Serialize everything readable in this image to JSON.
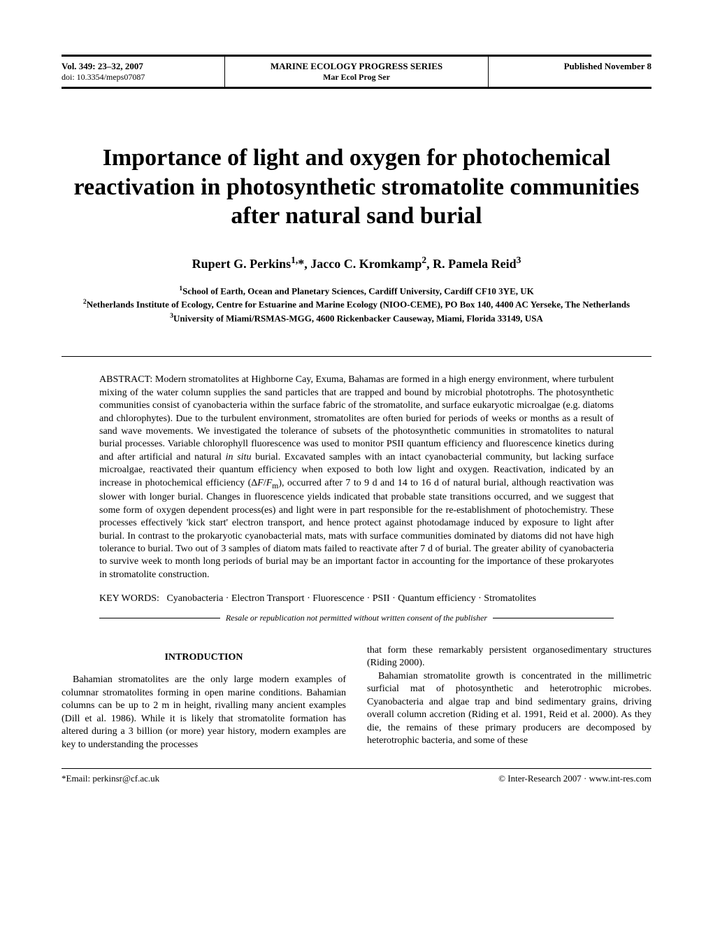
{
  "header": {
    "vol": "Vol. 349: 23–32, 2007",
    "doi": "doi: 10.3354/meps07087",
    "journal": "MARINE ECOLOGY PROGRESS SERIES",
    "journal_abbr": "Mar Ecol Prog Ser",
    "published": "Published November 8"
  },
  "title": "Importance of light and oxygen for photochemical reactivation in photosynthetic stromatolite communities after natural sand burial",
  "authors_html": "Rupert G. Perkins<sup>1,</sup>*, Jacco C. Kromkamp<sup>2</sup>, R. Pamela Reid<sup>3</sup>",
  "affiliations": {
    "a1": "<sup>1</sup>School of Earth, Ocean and Planetary Sciences, Cardiff University, Cardiff CF10 3YE, UK",
    "a2": "<sup>2</sup>Netherlands Institute of Ecology, Centre for Estuarine and Marine Ecology (NIOO-CEME), PO Box 140, 4400 AC Yerseke, The Netherlands",
    "a3": "<sup>3</sup>University of Miami/RSMAS-MGG, 4600 Rickenbacker Causeway, Miami, Florida 33149, USA"
  },
  "abstract_label": "ABSTRACT:",
  "abstract_text": "Modern stromatolites at Highborne Cay, Exuma, Bahamas are formed in a high energy environment, where turbulent mixing of the water column supplies the sand particles that are trapped and bound by microbial phototrophs. The photosynthetic communities consist of cyanobacteria within the surface fabric of the stromatolite, and surface eukaryotic microalgae (e.g. diatoms and chlorophytes). Due to the turbulent environment, stromatolites are often buried for periods of weeks or months as a result of sand wave movements. We investigated the tolerance of subsets of the photosynthetic communities in stromatolites to natural burial processes. Variable chlorophyll fluorescence was used to monitor PSII quantum efficiency and fluorescence kinetics during and after artificial and natural <i>in situ</i> burial. Excavated samples with an intact cyanobacterial community, but lacking surface microalgae, reactivated their quantum efficiency when exposed to both low light and oxygen. Reactivation, indicated by an increase in photochemical efficiency (Δ<i>F</i>/<i>F</i><sub>m</sub>), occurred after 7 to 9 d and 14 to 16 d of natural burial, although reactivation was slower with longer burial. Changes in fluorescence yields indicated that probable state transitions occurred, and we suggest that some form of oxygen dependent process(es) and light were in part responsible for the re-establishment of photochemistry. These processes effectively 'kick start' electron transport, and hence protect against photodamage induced by exposure to light after burial. In contrast to the prokaryotic cyanobacterial mats, mats with surface communities dominated by diatoms did not have high tolerance to burial. Two out of 3 samples of diatom mats failed to reactivate after 7 d of burial. The greater ability of cyanobacteria to survive week to month long periods of burial may be an important factor in accounting for the importance of these prokaryotes in stromatolite construction.",
  "keywords_label": "KEY WORDS:",
  "keywords_text": "Cyanobacteria · Electron Transport · Fluorescence · PSII · Quantum efficiency · Stromatolites",
  "resale": "Resale or republication not permitted without written consent of the publisher",
  "intro_heading": "INTRODUCTION",
  "col_left": "Bahamian stromatolites are the only large modern examples of columnar stromatolites forming in open marine conditions. Bahamian columns can be up to 2 m in height, rivalling many ancient examples (Dill et al. 1986). While it is likely that stromatolite formation has altered during a 3 billion (or more) year history, modern examples are key to understanding the processes",
  "col_right_p1": "that form these remarkably persistent organosedimentary structures (Riding 2000).",
  "col_right_p2": "Bahamian stromatolite growth is concentrated in the millimetric surficial mat of photosynthetic and heterotrophic microbes. Cyanobacteria and algae trap and bind sedimentary grains, driving overall column accretion (Riding et al. 1991, Reid et al. 2000). As they die, the remains of these primary producers are decomposed by heterotrophic bacteria, and some of these",
  "footer": {
    "email": "*Email: perkinsr@cf.ac.uk",
    "copyright": "© Inter-Research 2007 · www.int-res.com"
  }
}
